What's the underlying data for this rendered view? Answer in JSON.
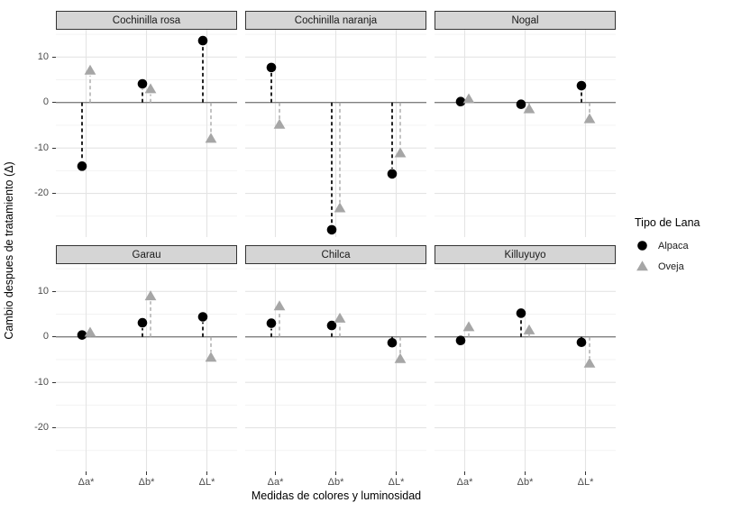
{
  "chart_data": {
    "type": "scatter",
    "title": "",
    "xlabel": "Medidas de colores y luminosidad",
    "ylabel": "Cambio despues de tratamiento (Δ)",
    "categories": [
      "Δa*",
      "Δb*",
      "ΔL*"
    ],
    "ylim": [
      16,
      -29.6
    ],
    "yticks": [
      10,
      0,
      -10,
      -20
    ],
    "yticks_minor": [
      15,
      5,
      -5,
      -15,
      -25
    ],
    "grid": true,
    "baseline": 0,
    "segments_to_baseline": true,
    "legend_title": "Tipo de Lana",
    "legend_position": "right",
    "series_meta": [
      {
        "name": "Alpaca",
        "marker": "circle",
        "color": "#000000",
        "dash_color": "#000000"
      },
      {
        "name": "Oveja",
        "marker": "triangle",
        "color": "#A6A6A6",
        "dash_color": "#ADADAD"
      }
    ],
    "facets": [
      {
        "name": "Cochinilla rosa",
        "series": {
          "Alpaca": [
            -14.0,
            4.1,
            13.6
          ],
          "Oveja": [
            7.1,
            3.0,
            -7.9
          ]
        }
      },
      {
        "name": "Cochinilla naranja",
        "series": {
          "Alpaca": [
            7.7,
            -28.0,
            -15.7
          ],
          "Oveja": [
            -4.8,
            -23.2,
            -11.1
          ]
        }
      },
      {
        "name": "Nogal",
        "series": {
          "Alpaca": [
            0.2,
            -0.4,
            3.7
          ],
          "Oveja": [
            0.8,
            -1.4,
            -3.6
          ]
        }
      },
      {
        "name": "Garau",
        "series": {
          "Alpaca": [
            0.4,
            3.1,
            4.4
          ],
          "Oveja": [
            1.0,
            9.0,
            -4.5
          ]
        }
      },
      {
        "name": "Chilca",
        "series": {
          "Alpaca": [
            3.0,
            2.5,
            -1.3
          ],
          "Oveja": [
            6.8,
            4.1,
            -4.8
          ]
        }
      },
      {
        "name": "Killuyuyo",
        "series": {
          "Alpaca": [
            -0.8,
            5.2,
            -1.2
          ],
          "Oveja": [
            2.2,
            1.5,
            -5.8
          ]
        }
      }
    ],
    "colors": {
      "strip_fill": "#D5D5D5",
      "strip_border": "#333333",
      "panel_border": "#333333",
      "panel_bg": "#FFFFFF",
      "grid_major": "#E4E4E4",
      "grid_minor": "#F1F1F1",
      "baseline_line": "#808080",
      "tick_text": "#4D4D4D"
    }
  }
}
